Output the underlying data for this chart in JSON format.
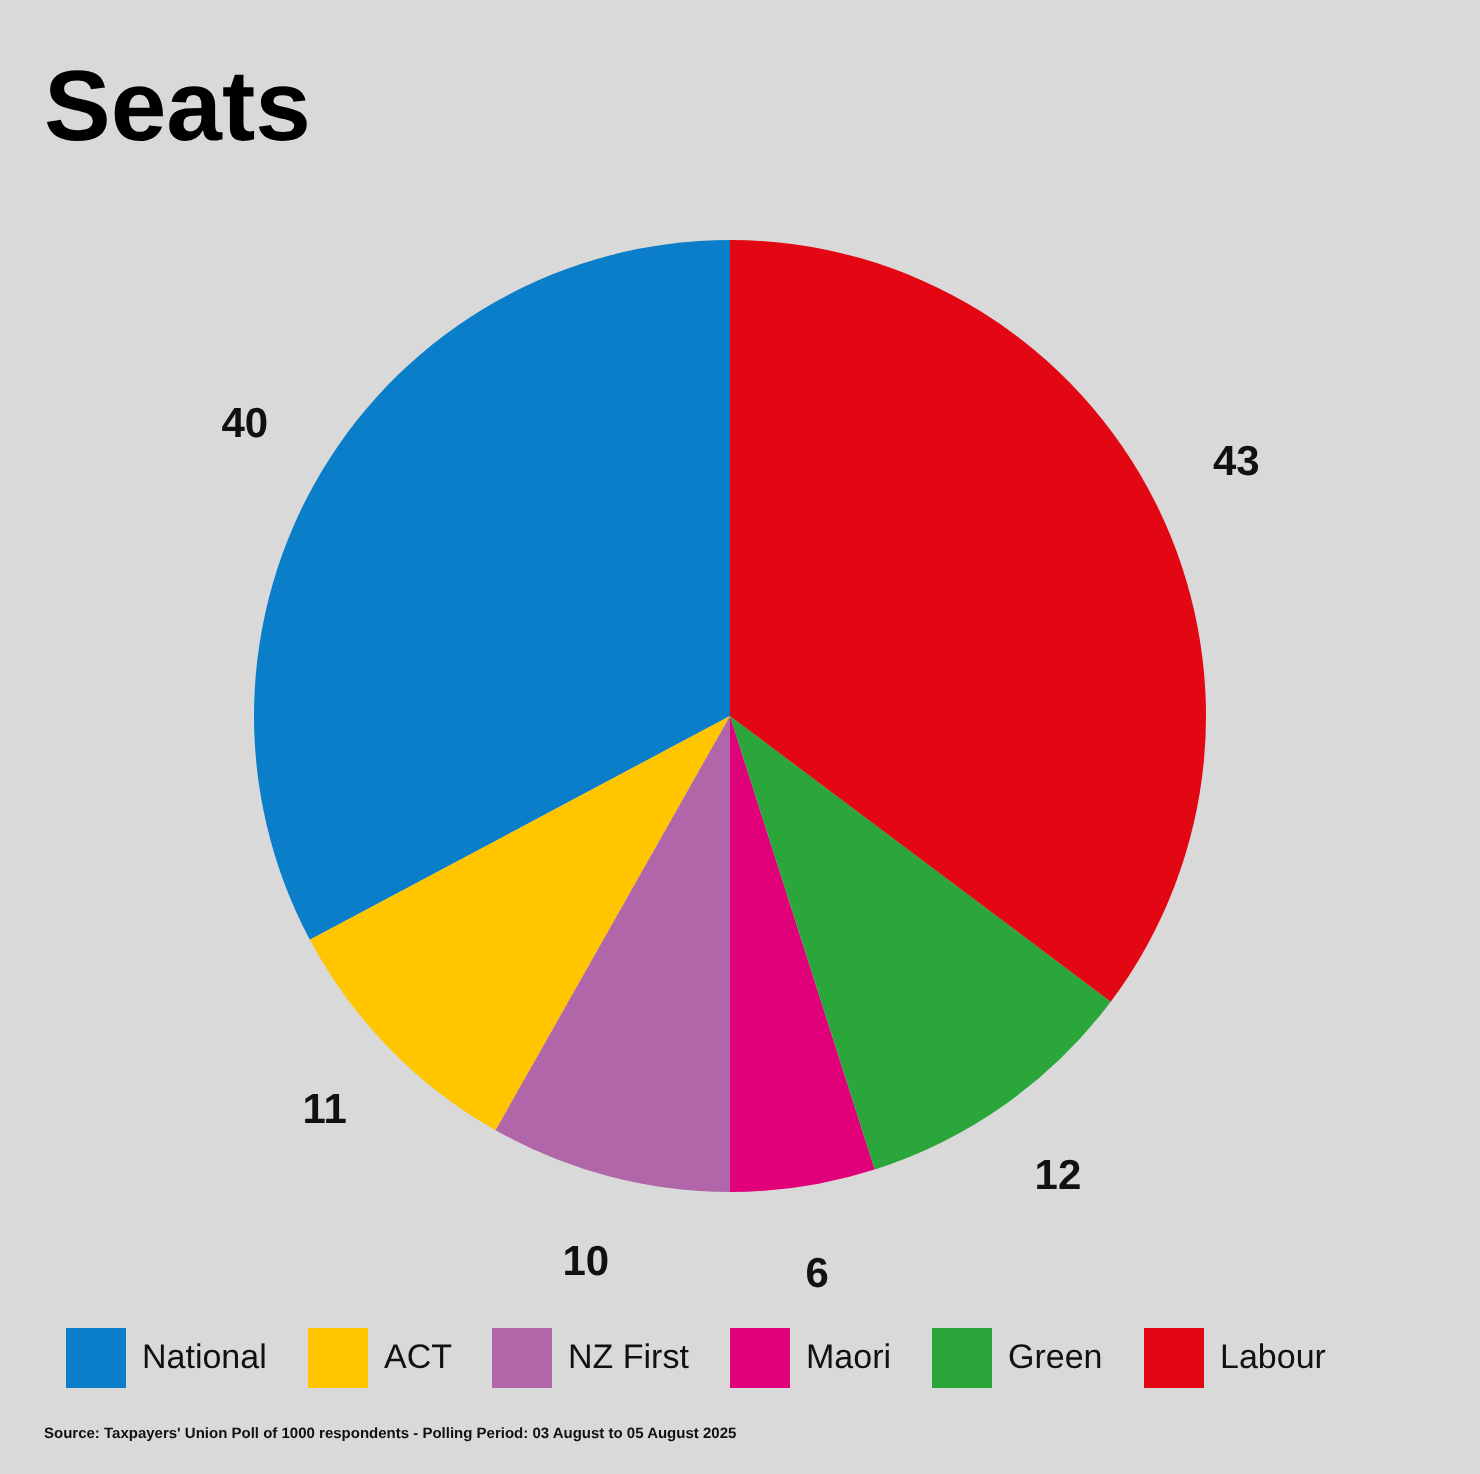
{
  "chart_data": {
    "type": "pie",
    "title": "Seats",
    "categories": [
      "National",
      "ACT",
      "NZ First",
      "Maori",
      "Green",
      "Labour"
    ],
    "values": [
      40,
      11,
      10,
      6,
      12,
      43
    ],
    "colors": [
      "#0a7ec8",
      "#ffc600",
      "#b066a8",
      "#e0007a",
      "#2aa63a",
      "#e30613"
    ],
    "data_labels": true,
    "legend": "bottom",
    "annotations": [
      "Source: Taxpayers' Union Poll of 1000 respondents - Polling Period: 03 August to 05 August 2025"
    ]
  }
}
